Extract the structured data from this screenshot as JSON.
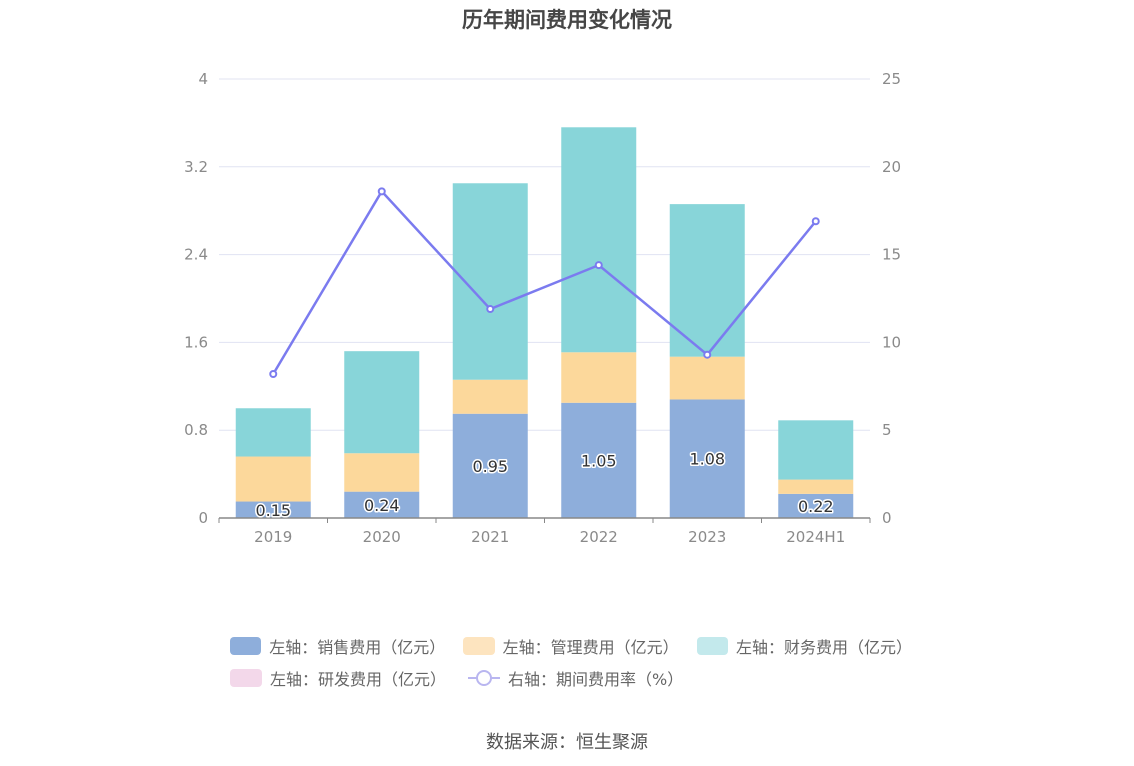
{
  "title": "历年期间费用变化情况",
  "source": "数据来源：恒生聚源",
  "legend": [
    {
      "label": "左轴：销售费用（亿元）",
      "color": "#8eaedb"
    },
    {
      "label": "左轴：管理费用（亿元）",
      "color": "#fde4bf"
    },
    {
      "label": "左轴：财务费用（亿元）",
      "color": "#c3e9ec"
    },
    {
      "label": "左轴：研发费用（亿元）",
      "color": "#f3d8ea"
    },
    {
      "label": "右轴：期间费用率（%）",
      "color": "#b9b6f0"
    }
  ],
  "chart_data": {
    "type": "bar",
    "title": "历年期间费用变化情况",
    "categories": [
      "2019",
      "2020",
      "2021",
      "2022",
      "2023",
      "2024H1"
    ],
    "stacked": true,
    "left_axis": {
      "ylim": [
        0,
        4
      ],
      "ticks": [
        "0",
        "0.8",
        "1.6",
        "2.4",
        "3.2",
        "4"
      ]
    },
    "right_axis": {
      "ylim": [
        0,
        25
      ],
      "ticks": [
        "0",
        "5",
        "10",
        "15",
        "20",
        "25"
      ]
    },
    "series": [
      {
        "name": "左轴：销售费用（亿元）",
        "axis": "left",
        "type": "bar",
        "color": "#8eaedb",
        "values": [
          0.15,
          0.24,
          0.95,
          1.05,
          1.08,
          0.22
        ],
        "labels": [
          "0.15",
          "0.24",
          "0.95",
          "1.05",
          "1.08",
          "0.22"
        ]
      },
      {
        "name": "左轴：管理费用（亿元）",
        "axis": "left",
        "type": "bar",
        "color": "#fcd89b",
        "values": [
          0.41,
          0.35,
          0.31,
          0.46,
          0.39,
          0.13
        ]
      },
      {
        "name": "左轴：财务费用（亿元）",
        "axis": "left",
        "type": "bar",
        "color": "#88d5d9",
        "values": [
          0.44,
          0.93,
          1.79,
          2.05,
          1.39,
          0.54
        ]
      },
      {
        "name": "左轴：研发费用（亿元）",
        "axis": "left",
        "type": "bar",
        "color": "#f3d8ea",
        "values": [
          0,
          0,
          0,
          0,
          0,
          0
        ]
      },
      {
        "name": "右轴：期间费用率（%）",
        "axis": "right",
        "type": "line",
        "color": "#7b7bef",
        "values": [
          8.2,
          18.6,
          11.9,
          14.4,
          9.3,
          16.9
        ]
      }
    ],
    "grid": true,
    "legend_position": "bottom"
  }
}
